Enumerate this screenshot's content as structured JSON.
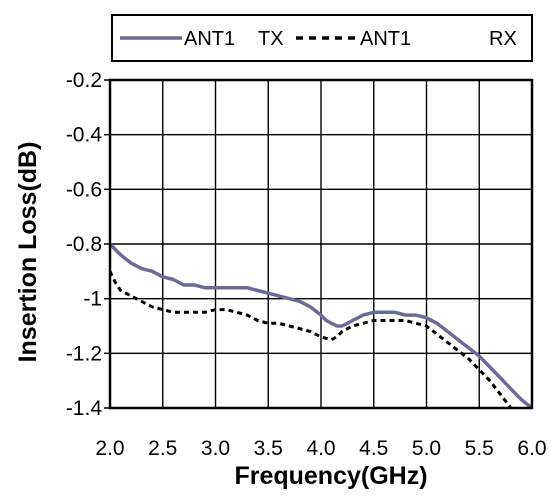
{
  "chart_data": {
    "type": "line",
    "title": "",
    "xlabel": "Frequency(GHz)",
    "ylabel": "Insertion Loss(dB)",
    "xlim": [
      2.0,
      6.0
    ],
    "ylim": [
      -1.4,
      -0.2
    ],
    "xticks": [
      2.0,
      2.5,
      3.0,
      3.5,
      4.0,
      4.5,
      5.0,
      5.5,
      6.0
    ],
    "xtick_labels": [
      "2.0",
      "2.5",
      "3.0",
      "3.5",
      "4.0",
      "4.5",
      "5.0",
      "5.5",
      "6.0"
    ],
    "yticks": [
      -0.2,
      -0.4,
      -0.6,
      -0.8,
      -1.0,
      -1.2,
      -1.4
    ],
    "ytick_labels": [
      "-0.2",
      "-0.4",
      "-0.6",
      "-0.8",
      "-1",
      "-1.2",
      "-1.4"
    ],
    "grid": true,
    "legend_placement": "top",
    "series": [
      {
        "name": "ANT1 TX",
        "legend_name": "ANT1",
        "legend_suffix": "TX",
        "style": "solid",
        "color": "#6b6b9a",
        "x": [
          2.0,
          2.05,
          2.1,
          2.2,
          2.3,
          2.4,
          2.5,
          2.6,
          2.7,
          2.8,
          2.9,
          3.0,
          3.1,
          3.2,
          3.3,
          3.4,
          3.5,
          3.6,
          3.7,
          3.8,
          3.9,
          4.0,
          4.05,
          4.1,
          4.15,
          4.2,
          4.25,
          4.3,
          4.4,
          4.5,
          4.6,
          4.7,
          4.8,
          4.9,
          5.0,
          5.1,
          5.2,
          5.3,
          5.4,
          5.5,
          5.6,
          5.7,
          5.8,
          5.9,
          6.0
        ],
        "y": [
          -0.8,
          -0.82,
          -0.84,
          -0.87,
          -0.89,
          -0.9,
          -0.92,
          -0.93,
          -0.95,
          -0.95,
          -0.96,
          -0.96,
          -0.96,
          -0.96,
          -0.96,
          -0.97,
          -0.98,
          -0.99,
          -1.0,
          -1.01,
          -1.03,
          -1.06,
          -1.08,
          -1.09,
          -1.1,
          -1.1,
          -1.09,
          -1.08,
          -1.06,
          -1.05,
          -1.05,
          -1.05,
          -1.06,
          -1.06,
          -1.07,
          -1.09,
          -1.12,
          -1.15,
          -1.18,
          -1.21,
          -1.25,
          -1.29,
          -1.33,
          -1.37,
          -1.4
        ]
      },
      {
        "name": "ANT1 RX",
        "legend_name": "ANT1",
        "legend_suffix": "RX",
        "style": "dashed",
        "color": "#000000",
        "x": [
          2.0,
          2.05,
          2.1,
          2.2,
          2.3,
          2.4,
          2.5,
          2.6,
          2.7,
          2.8,
          2.9,
          3.0,
          3.1,
          3.2,
          3.3,
          3.4,
          3.5,
          3.6,
          3.7,
          3.8,
          3.9,
          4.0,
          4.1,
          4.15,
          4.2,
          4.3,
          4.4,
          4.5,
          4.6,
          4.7,
          4.8,
          4.9,
          5.0,
          5.1,
          5.2,
          5.3,
          5.4,
          5.5,
          5.6,
          5.7,
          5.8
        ],
        "y": [
          -0.9,
          -0.94,
          -0.97,
          -0.99,
          -1.01,
          -1.03,
          -1.04,
          -1.05,
          -1.05,
          -1.05,
          -1.05,
          -1.04,
          -1.04,
          -1.05,
          -1.06,
          -1.08,
          -1.09,
          -1.09,
          -1.1,
          -1.11,
          -1.12,
          -1.14,
          -1.15,
          -1.14,
          -1.12,
          -1.1,
          -1.09,
          -1.08,
          -1.08,
          -1.08,
          -1.08,
          -1.09,
          -1.1,
          -1.13,
          -1.16,
          -1.19,
          -1.22,
          -1.26,
          -1.3,
          -1.35,
          -1.4
        ]
      }
    ]
  }
}
